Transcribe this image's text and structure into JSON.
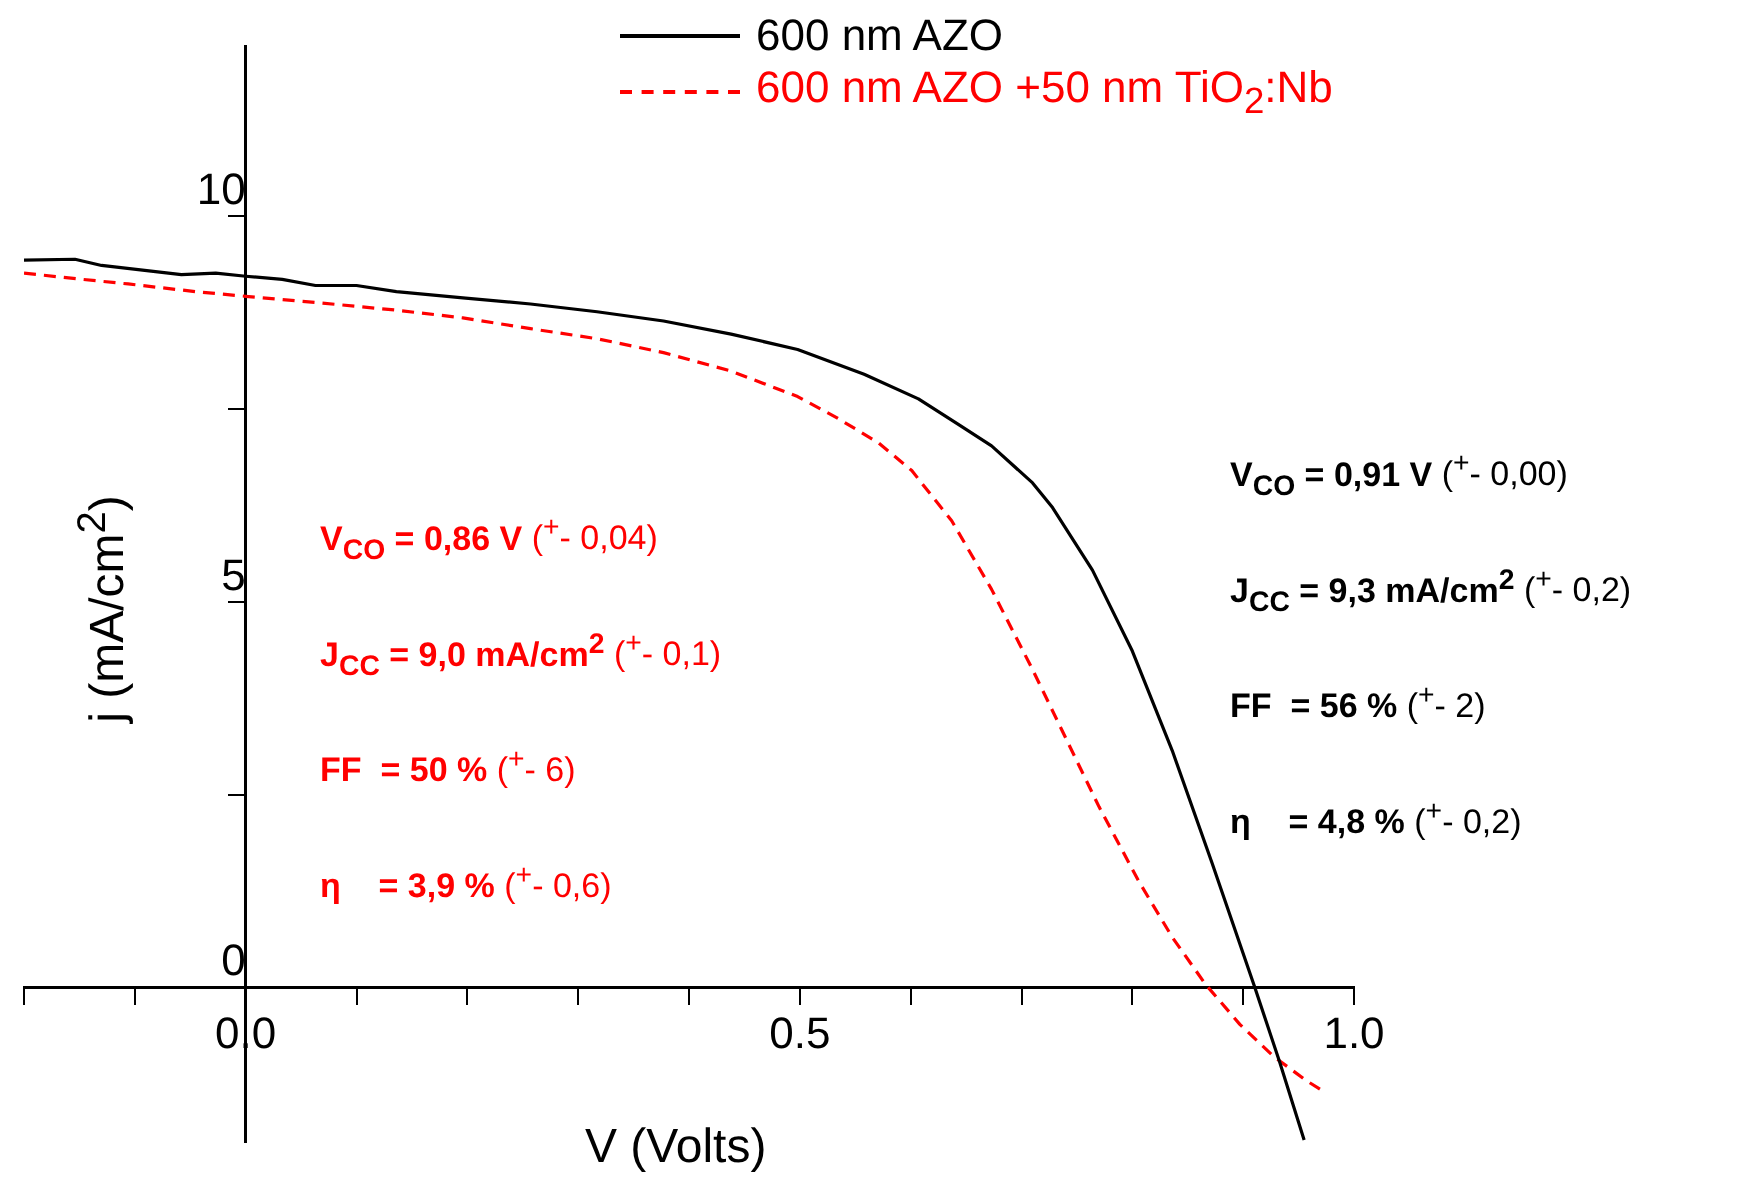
{
  "chart_data": {
    "type": "line",
    "xlabel": "V (Volts)",
    "ylabel": "j (mA/cm$^{2}$)",
    "xlim": [
      -0.2,
      1.0
    ],
    "ylim": [
      -2,
      12.2
    ],
    "xticks": [
      {
        "value": -0.2,
        "label": null
      },
      {
        "value": -0.1,
        "label": null
      },
      {
        "value": 0,
        "label": "0.0"
      },
      {
        "value": 0.1,
        "label": null
      },
      {
        "value": 0.2,
        "label": null
      },
      {
        "value": 0.3,
        "label": null
      },
      {
        "value": 0.4,
        "label": null
      },
      0.5,
      {
        "value": 0.6,
        "label": null
      },
      {
        "value": 0.7,
        "label": null
      },
      {
        "value": 0.8,
        "label": null
      },
      {
        "value": 0.9,
        "label": null
      },
      {
        "value": 1.0,
        "label": "1.0"
      }
    ],
    "yticks": [
      0,
      {
        "value": 2.5,
        "label": null
      },
      5,
      {
        "value": 7.5,
        "label": null
      },
      10
    ],
    "grid": false,
    "legend": "top",
    "marker": "none",
    "series": [
      {
        "name": "600 nm AZO",
        "color": "#000000",
        "line_style": "solid",
        "x": [
          -0.2,
          -0.154,
          -0.13,
          -0.058,
          -0.027,
          0,
          0.033,
          0.063,
          0.1,
          0.136,
          0.196,
          0.257,
          0.317,
          0.377,
          0.438,
          0.498,
          0.558,
          0.607,
          0.643,
          0.673,
          0.71,
          0.728,
          0.764,
          0.8,
          0.836,
          0.872,
          0.91,
          0.933,
          0.955
        ],
        "values": [
          9.43,
          9.44,
          9.36,
          9.24,
          9.26,
          9.22,
          9.18,
          9.1,
          9.1,
          9.02,
          8.94,
          8.86,
          8.76,
          8.64,
          8.47,
          8.27,
          7.95,
          7.63,
          7.3,
          7.02,
          6.54,
          6.22,
          5.41,
          4.36,
          3.07,
          1.61,
          0.02,
          -0.97,
          -1.98
        ]
      },
      {
        "name": "600 nm AZO +50 nm TiO$_{2}$:Nb",
        "color": "#ff0000",
        "line_style": "dashed",
        "x": [
          -0.2,
          -0.148,
          -0.106,
          -0.045,
          0,
          0.063,
          0.136,
          0.196,
          0.257,
          0.317,
          0.377,
          0.438,
          0.498,
          0.534,
          0.571,
          0.601,
          0.637,
          0.673,
          0.71,
          0.74,
          0.77,
          0.806,
          0.836,
          0.866,
          0.897,
          0.927,
          0.957,
          0.975
        ],
        "values": [
          9.26,
          9.18,
          9.12,
          9.02,
          8.96,
          8.88,
          8.78,
          8.68,
          8.54,
          8.41,
          8.23,
          7.99,
          7.66,
          7.38,
          7.06,
          6.7,
          6.05,
          5.16,
          4.12,
          3.23,
          2.34,
          1.37,
          0.65,
          0.04,
          -0.48,
          -0.89,
          -1.21,
          -1.37
        ]
      }
    ],
    "annotations": [
      "V$_{CO}$ = 0,86 V ($^{+}$- 0,04)",
      "J$_{CC}$ = 9,0 mA/cm$^{2}$ ($^{+}$- 0,1)",
      "FF  = 50 % ($^{+}$- 6)",
      "η    = 3,9 % ($^{+}$- 0,6)",
      "V$_{CO}$ = 0,91 V ($^{+}$- 0,00)",
      "J$_{CC}$ = 9,3 mA/cm$^{2}$ ($^{+}$- 0,2)",
      "FF  = 56 % ($^{+}$- 2)",
      "η    = 4,8 % ($^{+}$- 0,2)"
    ]
  }
}
